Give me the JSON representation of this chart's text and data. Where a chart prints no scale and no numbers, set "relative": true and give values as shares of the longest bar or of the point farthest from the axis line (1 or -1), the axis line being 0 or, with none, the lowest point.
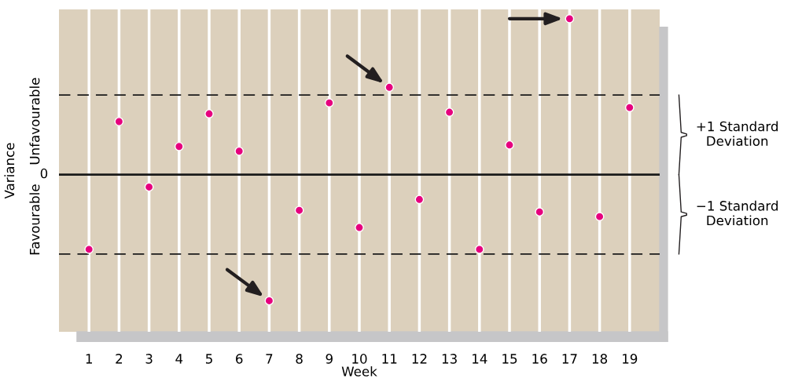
{
  "chart_data": {
    "type": "scatter",
    "relative": true,
    "xlabel": "Week",
    "ylabel": "Variance",
    "categories": [
      "1",
      "2",
      "3",
      "4",
      "5",
      "6",
      "7",
      "8",
      "9",
      "10",
      "11",
      "12",
      "13",
      "14",
      "15",
      "16",
      "17",
      "18",
      "19"
    ],
    "series": [
      {
        "color": "#e6007e",
        "values": [
          -0.48,
          0.34,
          -0.08,
          0.18,
          0.39,
          0.15,
          -0.81,
          -0.23,
          0.46,
          -0.34,
          0.56,
          -0.16,
          0.4,
          -0.48,
          0.19,
          -0.24,
          1,
          -0.27,
          0.43
        ]
      }
    ],
    "ref_lines": [
      {
        "axis": "y",
        "value": 0,
        "label": "0",
        "color": "#1a1a1a",
        "line_style": "solid"
      },
      {
        "axis": "y",
        "value": 0.51,
        "color": "#1a1a1a",
        "line_style": "dashed"
      },
      {
        "axis": "y",
        "value": -0.51,
        "color": "#1a1a1a",
        "line_style": "dashed"
      }
    ],
    "annotations": [
      "Unfavourable",
      "Favourable",
      "+1 Standard\nDeviation",
      "−1 Standard\nDeviation"
    ],
    "grid": "x",
    "marker": "circle",
    "legend": false,
    "tick_labels": "x"
  }
}
